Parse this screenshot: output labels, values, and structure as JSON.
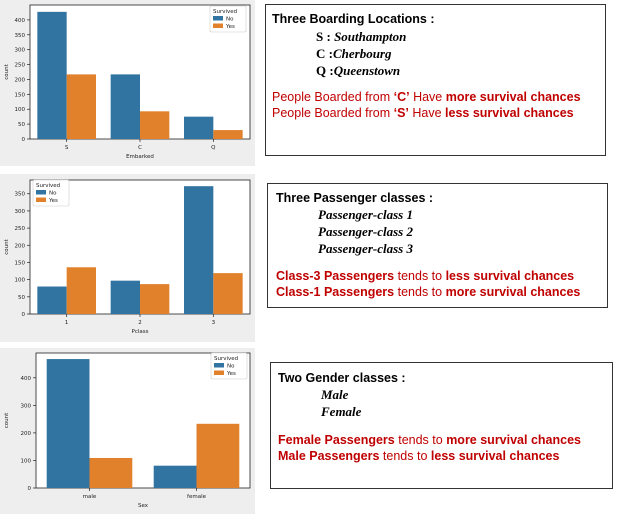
{
  "colors": {
    "no": "#3274a1",
    "yes": "#e1812c",
    "panel_bg": "#eeeeee",
    "accent_red": "#c00000"
  },
  "chart_data": [
    {
      "type": "bar",
      "categories": [
        "S",
        "C",
        "Q"
      ],
      "xlabel": "Embarked",
      "ylabel": "count",
      "ylim": [
        0,
        450
      ],
      "yticks": [
        0,
        50,
        100,
        150,
        200,
        250,
        300,
        350,
        400
      ],
      "legend_title": "Survived",
      "legend_position": "top-right",
      "series": [
        {
          "name": "No",
          "values": [
            427,
            217,
            75
          ]
        },
        {
          "name": "Yes",
          "values": [
            217,
            93,
            30
          ]
        }
      ]
    },
    {
      "type": "bar",
      "categories": [
        "1",
        "2",
        "3"
      ],
      "xlabel": "Pclass",
      "ylabel": "count",
      "ylim": [
        0,
        390
      ],
      "yticks": [
        0,
        50,
        100,
        150,
        200,
        250,
        300,
        350
      ],
      "legend_title": "Survived",
      "legend_position": "top-left",
      "series": [
        {
          "name": "No",
          "values": [
            80,
            97,
            372
          ]
        },
        {
          "name": "Yes",
          "values": [
            136,
            87,
            119
          ]
        }
      ]
    },
    {
      "type": "bar",
      "categories": [
        "male",
        "female"
      ],
      "xlabel": "Sex",
      "ylabel": "count",
      "ylim": [
        0,
        490
      ],
      "yticks": [
        0,
        100,
        200,
        300,
        400
      ],
      "legend_title": "Survived",
      "legend_position": "top-right",
      "series": [
        {
          "name": "No",
          "values": [
            468,
            81
          ]
        },
        {
          "name": "Yes",
          "values": [
            109,
            233
          ]
        }
      ]
    }
  ],
  "notes": [
    {
      "title": "Three Boarding Locations :",
      "items": [
        {
          "key": "S :",
          "value": "Southampton"
        },
        {
          "key": "C :",
          "value": "Cherbourg"
        },
        {
          "key": "Q :",
          "value": "Queenstown"
        }
      ],
      "lines": [
        {
          "p1": "People Boarded from ",
          "q": "‘C’",
          "p2": " Have ",
          "b": "more survival chances"
        },
        {
          "p1": "People Boarded from ",
          "q": "‘S’",
          "p2": " Have ",
          "b": "less survival chances"
        }
      ]
    },
    {
      "title": "Three Passenger classes :",
      "items": [
        {
          "key": "",
          "value": "Passenger-class 1"
        },
        {
          "key": "",
          "value": "Passenger-class 2"
        },
        {
          "key": "",
          "value": "Passenger-class 3"
        }
      ],
      "lines": [
        {
          "b1": "Class-3 Passengers",
          "p": " tends to ",
          "b2": "less survival chances"
        },
        {
          "b1": "Class-1 Passengers",
          "p": " tends to ",
          "b2": "more survival chances"
        }
      ]
    },
    {
      "title": "Two Gender classes :",
      "items": [
        {
          "key": "",
          "value": "Male"
        },
        {
          "key": "",
          "value": "Female"
        }
      ],
      "lines": [
        {
          "b1": "Female Passengers",
          "p": " tends to ",
          "b2": "more survival chances"
        },
        {
          "b1": "Male Passengers",
          "p": " tends to ",
          "b2": "less survival chances"
        }
      ]
    }
  ]
}
